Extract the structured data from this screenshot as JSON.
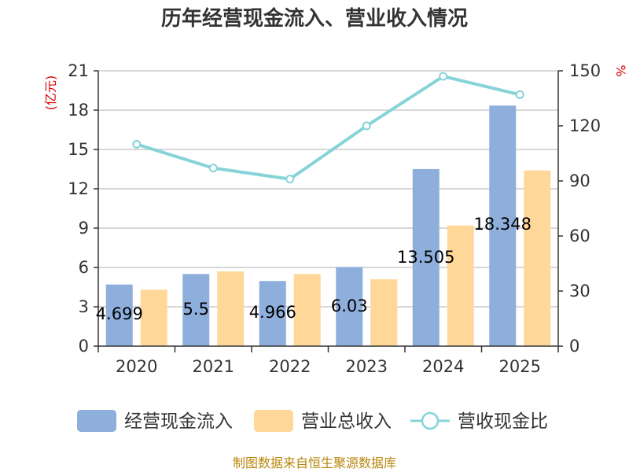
{
  "chart_data": {
    "type": "bar",
    "title": "历年经营现金流入、营业收入情况",
    "categories": [
      "2020",
      "2021",
      "2022",
      "2023",
      "2024",
      "2025"
    ],
    "left_axis": {
      "unit": "(亿元)",
      "ylim": [
        0,
        21
      ],
      "ticks": [
        0,
        3,
        6,
        9,
        12,
        15,
        18,
        21
      ]
    },
    "right_axis": {
      "unit": "%",
      "ylim": [
        0,
        150
      ],
      "ticks": [
        0,
        30,
        60,
        90,
        120,
        150
      ]
    },
    "series": [
      {
        "name": "经营现金流入",
        "type": "bar",
        "axis": "left",
        "color": "#8eaedc",
        "values": [
          4.699,
          5.5,
          4.966,
          6.03,
          13.505,
          18.348
        ],
        "labels": [
          "4.699",
          "5.5",
          "4.966",
          "6.03",
          "13.505",
          "18.348"
        ]
      },
      {
        "name": "营业总收入",
        "type": "bar",
        "axis": "left",
        "color": "#ffd899",
        "values": [
          4.3,
          5.7,
          5.5,
          5.1,
          9.2,
          13.4
        ]
      },
      {
        "name": "营收现金比",
        "type": "line",
        "axis": "right",
        "color": "#87d3d8",
        "values": [
          110,
          97,
          91,
          120,
          147,
          137
        ]
      }
    ],
    "grid": true,
    "legend_position": "bottom",
    "source": "制图数据来自恒生聚源数据库"
  }
}
